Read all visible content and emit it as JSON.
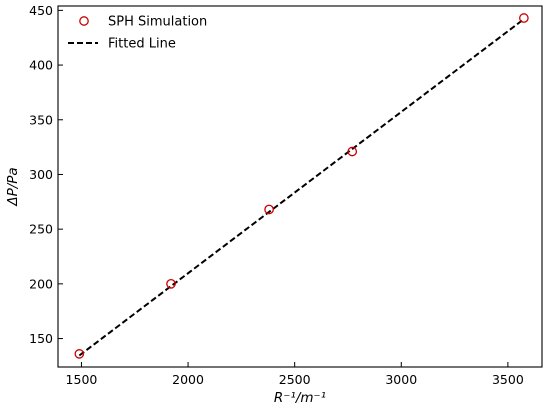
{
  "chart_data": {
    "type": "scatter",
    "title": "",
    "xlabel": "R⁻¹/m⁻¹",
    "ylabel": "ΔP/Pa",
    "xlim": [
      1390,
      3660
    ],
    "ylim": [
      124,
      454
    ],
    "xticks": [
      1500,
      2000,
      2500,
      3000,
      3500
    ],
    "yticks": [
      150,
      200,
      250,
      300,
      350,
      400,
      450
    ],
    "grid": false,
    "legend_position": "top-left",
    "series": [
      {
        "name": "SPH Simulation",
        "kind": "scatter",
        "marker": "open-circle",
        "color": "#cc0000",
        "x": [
          1490,
          1920,
          2380,
          2770,
          3575
        ],
        "y": [
          136,
          200,
          268,
          321,
          443
        ]
      },
      {
        "name": "Fitted Line",
        "kind": "line",
        "style": "dashed",
        "color": "#000000",
        "x": [
          1490,
          3575
        ],
        "y": [
          134.5,
          442
        ]
      }
    ]
  }
}
